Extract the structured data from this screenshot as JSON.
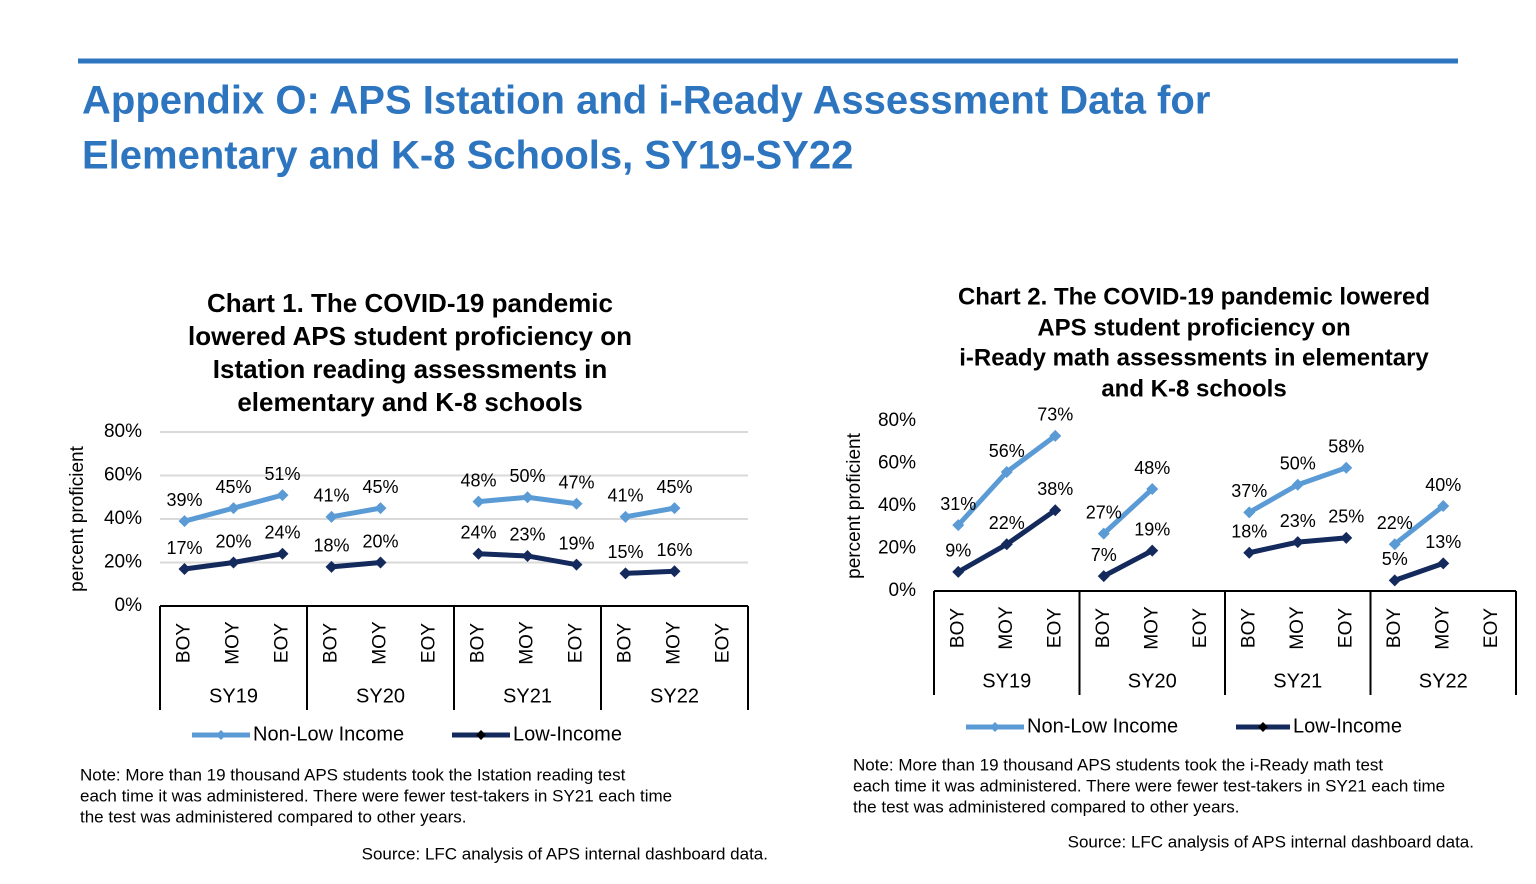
{
  "header": {
    "title": [
      "Appendix O: APS Istation and i-Ready Assessment Data for",
      "Elementary and K-8 Schools, SY19-SY22"
    ]
  },
  "chart_data": [
    {
      "type": "line",
      "title": [
        "Chart 1. The COVID-19 pandemic",
        "lowered APS student proficiency  on",
        "Istation  reading  assessments  in",
        "elementary  and K-8 schools"
      ],
      "y_label": "percent proficient",
      "categories": [
        "BOY",
        "MOY",
        "EOY",
        "BOY",
        "MOY",
        "EOY",
        "BOY",
        "MOY",
        "EOY",
        "BOY",
        "MOY",
        "EOY"
      ],
      "groups": [
        "SY19",
        "SY20",
        "SY21",
        "SY22"
      ],
      "ylim": [
        0,
        80
      ],
      "yticks": [
        {
          "value": 0,
          "label": "0%"
        },
        {
          "value": 20,
          "label": "20%"
        },
        {
          "value": 40,
          "label": "40%"
        },
        {
          "value": 60,
          "label": "60%"
        },
        {
          "value": 80,
          "label": "80%"
        }
      ],
      "grid": true,
      "series": [
        {
          "name": "Non-Low Income",
          "color": "#5b9bd5",
          "values": [
            39,
            45,
            51,
            41,
            45,
            null,
            48,
            50,
            47,
            41,
            45,
            null
          ],
          "value_labels": [
            "39%",
            "45%",
            "51%",
            "41%",
            "45%",
            null,
            "48%",
            "50%",
            "47%",
            "41%",
            "45%",
            null
          ]
        },
        {
          "name": "Low-Income",
          "color": "#142a5c",
          "values": [
            17,
            20,
            24,
            18,
            20,
            null,
            24,
            23,
            19,
            15,
            16,
            null
          ],
          "value_labels": [
            "17%",
            "20%",
            "24%",
            "18%",
            "20%",
            null,
            "24%",
            "23%",
            "19%",
            "15%",
            "16%",
            null
          ]
        }
      ],
      "note": [
        "Note: More than 19 thousand APS students took the Istation reading test",
        "each time it was administered. There were fewer test-takers in SY21 each time",
        "the test was administered compared to other years."
      ],
      "source": "Source: LFC analysis of APS internal dashboard data."
    },
    {
      "type": "line",
      "title": [
        "Chart 2. The COVID-19 pandemic lowered",
        "APS student proficiency on",
        "i-Ready math assessments in elementary",
        "and K-8 schools"
      ],
      "y_label": "percent proficient",
      "categories": [
        "BOY",
        "MOY",
        "EOY",
        "BOY",
        "MOY",
        "EOY",
        "BOY",
        "MOY",
        "EOY",
        "BOY",
        "MOY",
        "EOY"
      ],
      "groups": [
        "SY19",
        "SY20",
        "SY21",
        "SY22"
      ],
      "ylim": [
        0,
        80
      ],
      "yticks": [
        {
          "value": 0,
          "label": "0%"
        },
        {
          "value": 20,
          "label": "20%"
        },
        {
          "value": 40,
          "label": "40%"
        },
        {
          "value": 60,
          "label": "60%"
        },
        {
          "value": 80,
          "label": "80%"
        }
      ],
      "grid": false,
      "series": [
        {
          "name": "Non-Low Income",
          "color": "#5b9bd5",
          "values": [
            31,
            56,
            73,
            27,
            48,
            null,
            37,
            50,
            58,
            22,
            40,
            null
          ],
          "value_labels": [
            "31%",
            "56%",
            "73%",
            "27%",
            "48%",
            null,
            "37%",
            "50%",
            "58%",
            "22%",
            "40%",
            null
          ]
        },
        {
          "name": "Low-Income",
          "color": "#142a5c",
          "values": [
            9,
            22,
            38,
            7,
            19,
            null,
            18,
            23,
            25,
            5,
            13,
            null
          ],
          "value_labels": [
            "9%",
            "22%",
            "38%",
            "7%",
            "19%",
            null,
            "18%",
            "23%",
            "25%",
            "5%",
            "13%",
            null
          ]
        }
      ],
      "note": [
        "Note: More than 19 thousand APS students took the i-Ready math test",
        "each time it was administered. There were fewer test-takers in SY21 each time",
        "the test was administered compared to other years."
      ],
      "source": "Source: LFC analysis of APS internal dashboard data."
    }
  ]
}
